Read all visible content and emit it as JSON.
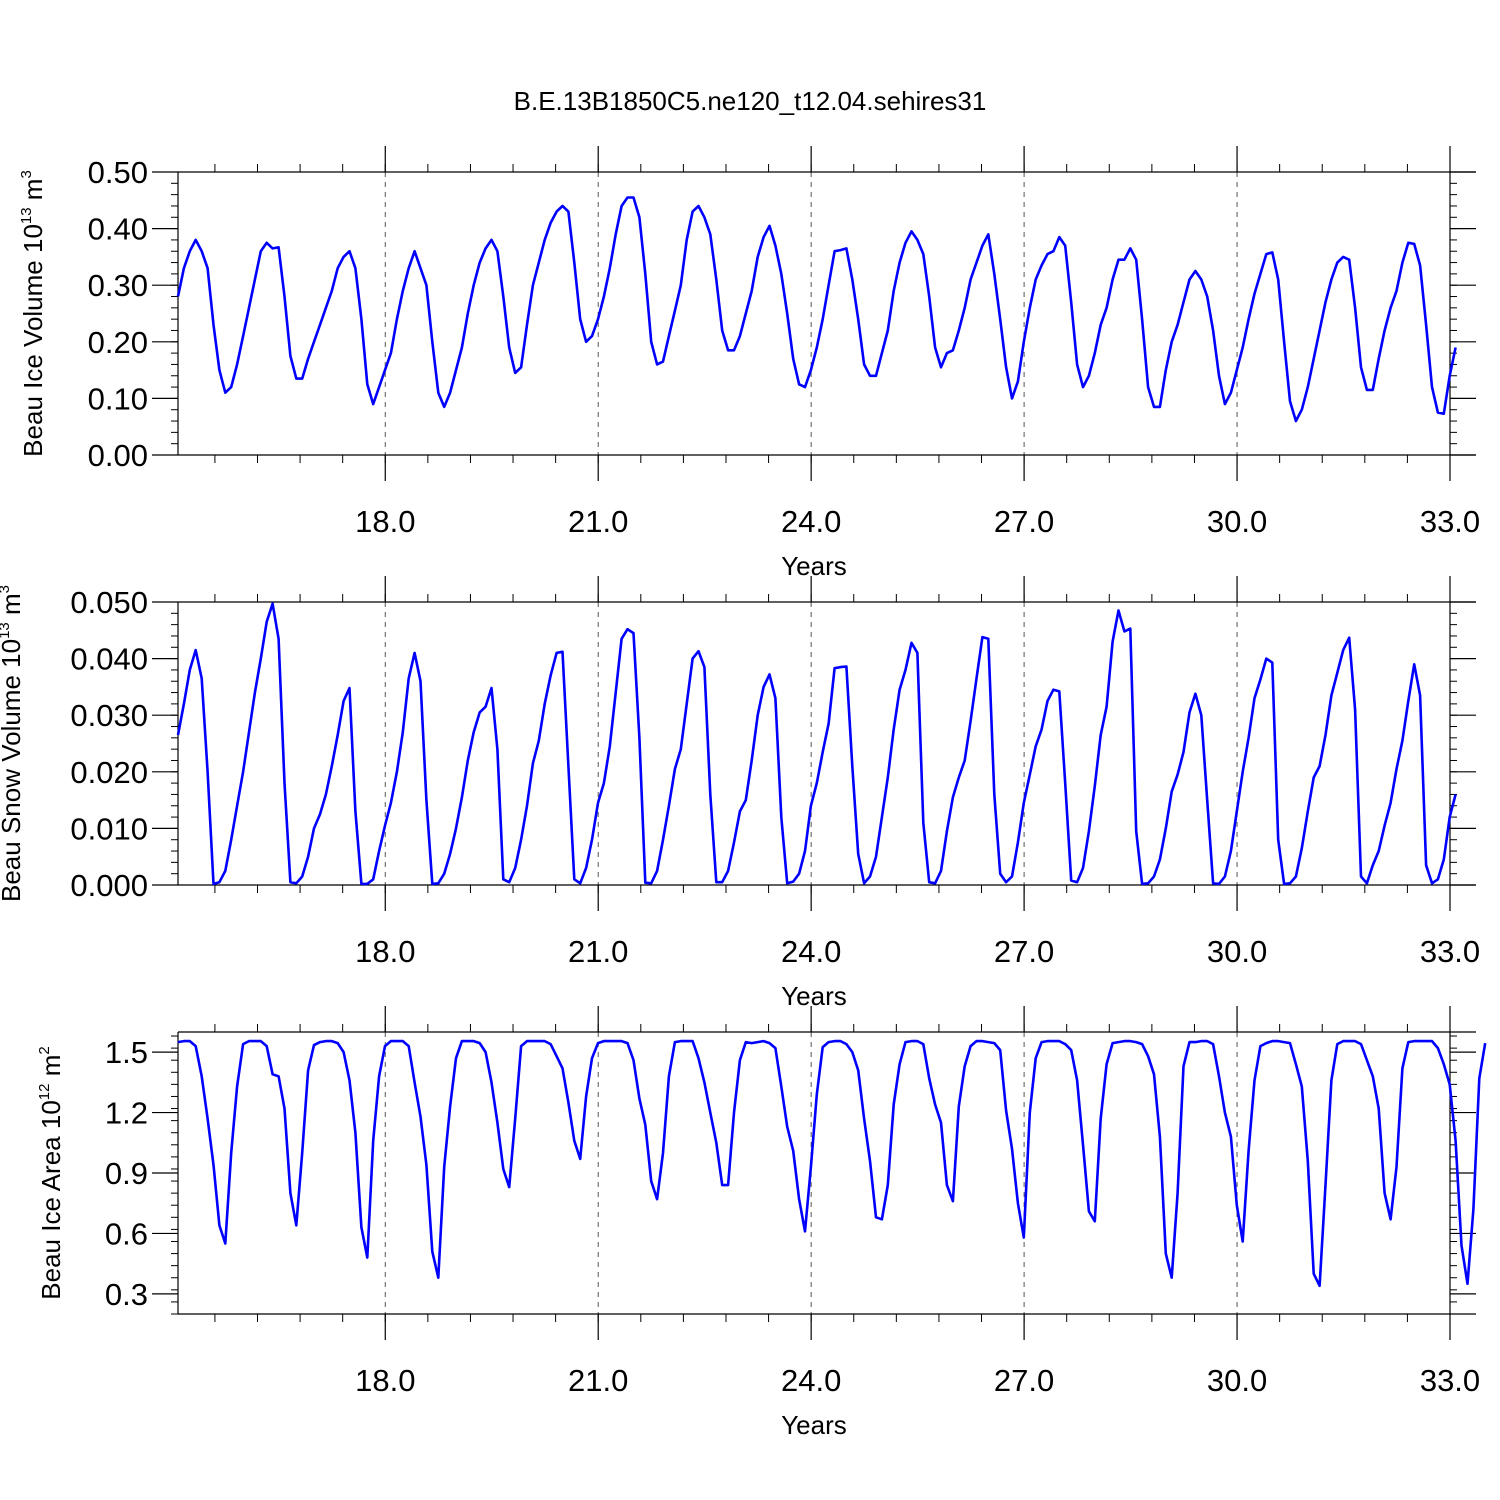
{
  "title": "B.E.13B1850C5.ne120_t12.04.sehires31",
  "chart_data": [
    {
      "type": "line",
      "xlabel": "Years",
      "ylabel_base": "Beau Ice Volume 10",
      "ylabel_exp": "13",
      "ylabel_unit": " m",
      "ylabel_unit_exp": "3",
      "xlim": [
        15.08,
        33.0
      ],
      "ylim": [
        0.0,
        0.5
      ],
      "xticks": [
        18.0,
        21.0,
        24.0,
        27.0,
        30.0,
        33.0
      ],
      "xtick_labels": [
        "18.0",
        "21.0",
        "24.0",
        "27.0",
        "30.0",
        "33.0"
      ],
      "yticks": [
        0.0,
        0.1,
        0.2,
        0.3,
        0.4,
        0.5
      ],
      "ytick_labels": [
        "0.00",
        "0.10",
        "0.20",
        "0.30",
        "0.40",
        "0.50"
      ],
      "grid": "vertical dashed at x ticks",
      "color": "#0000ff",
      "x_start": 15.08,
      "x_step": 0.08333,
      "values": [
        0.28,
        0.33,
        0.36,
        0.38,
        0.36,
        0.33,
        0.23,
        0.15,
        0.11,
        0.12,
        0.16,
        0.21,
        0.26,
        0.31,
        0.36,
        0.375,
        0.365,
        0.367,
        0.28,
        0.175,
        0.135,
        0.135,
        0.17,
        0.2,
        0.23,
        0.26,
        0.29,
        0.33,
        0.35,
        0.36,
        0.33,
        0.24,
        0.125,
        0.09,
        0.12,
        0.15,
        0.18,
        0.24,
        0.29,
        0.33,
        0.36,
        0.33,
        0.3,
        0.2,
        0.11,
        0.085,
        0.11,
        0.15,
        0.19,
        0.25,
        0.3,
        0.34,
        0.365,
        0.38,
        0.36,
        0.28,
        0.19,
        0.145,
        0.155,
        0.23,
        0.3,
        0.34,
        0.38,
        0.41,
        0.43,
        0.44,
        0.43,
        0.34,
        0.24,
        0.2,
        0.21,
        0.24,
        0.28,
        0.33,
        0.39,
        0.44,
        0.455,
        0.455,
        0.42,
        0.32,
        0.2,
        0.16,
        0.165,
        0.21,
        0.255,
        0.3,
        0.38,
        0.43,
        0.44,
        0.42,
        0.39,
        0.31,
        0.22,
        0.185,
        0.185,
        0.21,
        0.25,
        0.29,
        0.35,
        0.385,
        0.405,
        0.37,
        0.32,
        0.25,
        0.17,
        0.125,
        0.12,
        0.15,
        0.19,
        0.24,
        0.3,
        0.36,
        0.362,
        0.365,
        0.31,
        0.24,
        0.16,
        0.14,
        0.14,
        0.18,
        0.22,
        0.29,
        0.34,
        0.375,
        0.395,
        0.38,
        0.355,
        0.28,
        0.19,
        0.155,
        0.18,
        0.185,
        0.22,
        0.26,
        0.31,
        0.34,
        0.37,
        0.39,
        0.32,
        0.24,
        0.155,
        0.1,
        0.13,
        0.2,
        0.26,
        0.31,
        0.335,
        0.355,
        0.36,
        0.385,
        0.37,
        0.27,
        0.16,
        0.12,
        0.14,
        0.18,
        0.23,
        0.26,
        0.31,
        0.345,
        0.345,
        0.365,
        0.345,
        0.24,
        0.12,
        0.085,
        0.085,
        0.15,
        0.2,
        0.23,
        0.27,
        0.31,
        0.325,
        0.31,
        0.28,
        0.22,
        0.14,
        0.09,
        0.11,
        0.15,
        0.19,
        0.24,
        0.285,
        0.32,
        0.355,
        0.358,
        0.31,
        0.2,
        0.095,
        0.06,
        0.08,
        0.12,
        0.17,
        0.22,
        0.27,
        0.31,
        0.34,
        0.35,
        0.345,
        0.26,
        0.155,
        0.115,
        0.115,
        0.17,
        0.22,
        0.26,
        0.29,
        0.34,
        0.375,
        0.373,
        0.335,
        0.23,
        0.12,
        0.075,
        0.073,
        0.14,
        0.19
      ]
    },
    {
      "type": "line",
      "xlabel": "Years",
      "ylabel_base": "Beau Snow Volume 10",
      "ylabel_exp": "13",
      "ylabel_unit": " m",
      "ylabel_unit_exp": "3",
      "xlim": [
        15.08,
        33.0
      ],
      "ylim": [
        0.0,
        0.05
      ],
      "xticks": [
        18.0,
        21.0,
        24.0,
        27.0,
        30.0,
        33.0
      ],
      "xtick_labels": [
        "18.0",
        "21.0",
        "24.0",
        "27.0",
        "30.0",
        "33.0"
      ],
      "yticks": [
        0.0,
        0.01,
        0.02,
        0.03,
        0.04,
        0.05
      ],
      "ytick_labels": [
        "0.000",
        "0.010",
        "0.020",
        "0.030",
        "0.040",
        "0.050"
      ],
      "grid": "vertical dashed at x ticks",
      "color": "#0000ff",
      "x_start": 15.08,
      "x_step": 0.08333,
      "values": [
        0.0265,
        0.032,
        0.038,
        0.0415,
        0.0365,
        0.02,
        0.0002,
        0.0005,
        0.0025,
        0.008,
        0.014,
        0.02,
        0.027,
        0.034,
        0.04,
        0.0465,
        0.0497,
        0.0435,
        0.018,
        0.0005,
        0.0003,
        0.0015,
        0.005,
        0.01,
        0.0125,
        0.016,
        0.021,
        0.0265,
        0.0325,
        0.0348,
        0.013,
        0.0002,
        0.0002,
        0.001,
        0.006,
        0.0105,
        0.0145,
        0.02,
        0.027,
        0.0365,
        0.041,
        0.036,
        0.015,
        0.0002,
        0.0003,
        0.002,
        0.0055,
        0.01,
        0.0155,
        0.022,
        0.027,
        0.0305,
        0.0315,
        0.0348,
        0.024,
        0.001,
        0.0005,
        0.003,
        0.008,
        0.014,
        0.0215,
        0.0255,
        0.032,
        0.037,
        0.041,
        0.0412,
        0.021,
        0.001,
        0.0003,
        0.003,
        0.008,
        0.0145,
        0.018,
        0.0245,
        0.034,
        0.0435,
        0.0452,
        0.0445,
        0.026,
        0.0004,
        0.0003,
        0.0025,
        0.008,
        0.014,
        0.0205,
        0.024,
        0.032,
        0.04,
        0.0413,
        0.0385,
        0.016,
        0.0005,
        0.0005,
        0.0025,
        0.0075,
        0.013,
        0.015,
        0.022,
        0.03,
        0.035,
        0.0372,
        0.033,
        0.012,
        0.0003,
        0.0006,
        0.002,
        0.006,
        0.014,
        0.018,
        0.0235,
        0.0285,
        0.0383,
        0.0385,
        0.0386,
        0.021,
        0.0055,
        0.0003,
        0.0015,
        0.005,
        0.012,
        0.019,
        0.0275,
        0.0345,
        0.038,
        0.0428,
        0.041,
        0.011,
        0.0005,
        0.0003,
        0.0025,
        0.0095,
        0.0155,
        0.019,
        0.022,
        0.029,
        0.0365,
        0.0438,
        0.0435,
        0.016,
        0.002,
        0.0005,
        0.0015,
        0.0075,
        0.0145,
        0.0195,
        0.0245,
        0.0275,
        0.0325,
        0.0345,
        0.0342,
        0.018,
        0.0008,
        0.0005,
        0.003,
        0.0095,
        0.0175,
        0.0265,
        0.0315,
        0.043,
        0.0485,
        0.0448,
        0.0453,
        0.0095,
        0.0002,
        0.0003,
        0.0015,
        0.0045,
        0.01,
        0.0165,
        0.0195,
        0.0235,
        0.0305,
        0.0338,
        0.03,
        0.015,
        0.0003,
        0.0002,
        0.0015,
        0.006,
        0.013,
        0.02,
        0.026,
        0.033,
        0.0363,
        0.04,
        0.0393,
        0.008,
        0.0002,
        0.0003,
        0.0015,
        0.0065,
        0.013,
        0.019,
        0.021,
        0.0265,
        0.0335,
        0.0375,
        0.0415,
        0.0437,
        0.031,
        0.0015,
        0.0003,
        0.0035,
        0.006,
        0.0105,
        0.0145,
        0.0205,
        0.0255,
        0.0325,
        0.039,
        0.0335,
        0.0035,
        0.0003,
        0.001,
        0.0045,
        0.012,
        0.016
      ]
    },
    {
      "type": "line",
      "xlabel": "Years",
      "ylabel_base": "Beau Ice Area 10",
      "ylabel_exp": "12",
      "ylabel_unit": " m",
      "ylabel_unit_exp": "2",
      "xlim": [
        15.08,
        33.0
      ],
      "ylim": [
        0.2,
        1.6
      ],
      "xticks": [
        18.0,
        21.0,
        24.0,
        27.0,
        30.0,
        33.0
      ],
      "xtick_labels": [
        "18.0",
        "21.0",
        "24.0",
        "27.0",
        "30.0",
        "33.0"
      ],
      "yticks": [
        0.3,
        0.6,
        0.9,
        1.2,
        1.5
      ],
      "ytick_labels": [
        "0.3",
        "0.6",
        "0.9",
        "1.2",
        "1.5"
      ],
      "grid": "vertical dashed at x ticks",
      "color": "#0000ff",
      "x_start": 15.08,
      "x_step": 0.08333,
      "values": [
        1.55,
        1.555,
        1.555,
        1.53,
        1.38,
        1.17,
        0.94,
        0.64,
        0.55,
        1.0,
        1.33,
        1.54,
        1.555,
        1.555,
        1.555,
        1.53,
        1.39,
        1.38,
        1.22,
        0.8,
        0.64,
        1.0,
        1.41,
        1.535,
        1.55,
        1.555,
        1.555,
        1.545,
        1.5,
        1.36,
        1.1,
        0.63,
        0.48,
        1.06,
        1.38,
        1.53,
        1.555,
        1.555,
        1.555,
        1.53,
        1.35,
        1.18,
        0.94,
        0.51,
        0.38,
        0.93,
        1.23,
        1.47,
        1.555,
        1.555,
        1.555,
        1.545,
        1.5,
        1.35,
        1.15,
        0.92,
        0.83,
        1.17,
        1.53,
        1.555,
        1.555,
        1.555,
        1.555,
        1.54,
        1.48,
        1.42,
        1.25,
        1.06,
        0.97,
        1.28,
        1.47,
        1.545,
        1.555,
        1.555,
        1.555,
        1.555,
        1.545,
        1.46,
        1.27,
        1.14,
        0.86,
        0.77,
        1.0,
        1.38,
        1.55,
        1.555,
        1.555,
        1.555,
        1.47,
        1.35,
        1.2,
        1.05,
        0.84,
        0.84,
        1.2,
        1.46,
        1.55,
        1.545,
        1.55,
        1.555,
        1.545,
        1.52,
        1.33,
        1.13,
        1.01,
        0.77,
        0.61,
        0.93,
        1.29,
        1.525,
        1.55,
        1.555,
        1.555,
        1.54,
        1.5,
        1.41,
        1.17,
        0.96,
        0.68,
        0.67,
        0.84,
        1.24,
        1.44,
        1.55,
        1.555,
        1.555,
        1.54,
        1.37,
        1.24,
        1.15,
        0.84,
        0.76,
        1.23,
        1.43,
        1.53,
        1.555,
        1.555,
        1.55,
        1.545,
        1.51,
        1.21,
        1.02,
        0.75,
        0.58,
        1.2,
        1.47,
        1.55,
        1.555,
        1.555,
        1.555,
        1.54,
        1.51,
        1.36,
        1.04,
        0.71,
        0.66,
        1.17,
        1.44,
        1.545,
        1.55,
        1.555,
        1.555,
        1.55,
        1.54,
        1.48,
        1.39,
        1.08,
        0.5,
        0.38,
        0.8,
        1.43,
        1.55,
        1.55,
        1.555,
        1.555,
        1.54,
        1.38,
        1.2,
        1.08,
        0.74,
        0.56,
        1.01,
        1.36,
        1.53,
        1.545,
        1.555,
        1.555,
        1.55,
        1.545,
        1.44,
        1.33,
        0.96,
        0.4,
        0.34,
        0.84,
        1.36,
        1.54,
        1.555,
        1.555,
        1.555,
        1.54,
        1.46,
        1.38,
        1.22,
        0.8,
        0.67,
        0.93,
        1.42,
        1.55,
        1.555,
        1.555,
        1.555,
        1.555,
        1.52,
        1.44,
        1.34,
        1.06,
        0.54,
        0.35,
        0.72,
        1.37,
        1.545
      ]
    }
  ]
}
